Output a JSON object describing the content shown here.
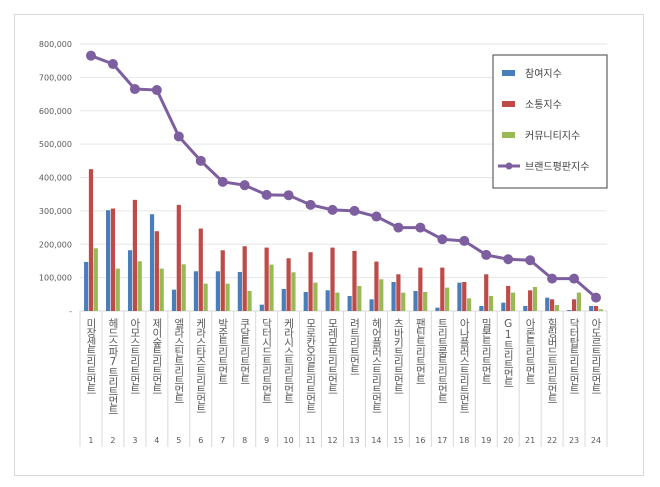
{
  "chart_data": {
    "type": "bar",
    "categories": [
      "미장센트리트먼트",
      "헤드스파7트리트먼트",
      "아모스트리트먼트",
      "제이숲트리트먼트",
      "엘라스틴트리트먼트",
      "케라스타즈트리트먼트",
      "박준트리트먼트",
      "쿠달트리트먼트",
      "닥터시드트리트먼트",
      "케라시스트리트먼트",
      "모로칸오일트리트먼트",
      "모레모트리트먼트",
      "려트리트먼트",
      "헤어플러스트리트먼트",
      "츠바키트리트먼트",
      "팬틴트리트먼트",
      "트리트룸트리트먼트",
      "아나플러스트리트먼트",
      "밀본트리트먼트",
      "G1트리트먼트",
      "아론트리트먼트",
      "힐링버드트리트먼트",
      "닥터탑트리트먼트",
      "아도르트리트먼트"
    ],
    "ranks": [
      "1",
      "2",
      "3",
      "4",
      "5",
      "6",
      "7",
      "8",
      "9",
      "10",
      "11",
      "12",
      "13",
      "14",
      "15",
      "16",
      "17",
      "18",
      "19",
      "20",
      "21",
      "22",
      "23",
      "24"
    ],
    "series": [
      {
        "name": "참여지수",
        "type": "bar",
        "color": "#4a7ebb",
        "values": [
          147000,
          302000,
          182000,
          290000,
          64000,
          119000,
          119000,
          117000,
          19000,
          66000,
          57000,
          62000,
          45000,
          35000,
          87000,
          60000,
          10000,
          85000,
          15000,
          25000,
          15000,
          40000,
          3000,
          15000
        ]
      },
      {
        "name": "소통지수",
        "type": "bar",
        "color": "#be4b48",
        "values": [
          425000,
          307000,
          333000,
          239000,
          318000,
          247000,
          182000,
          194000,
          190000,
          158000,
          176000,
          190000,
          180000,
          148000,
          110000,
          130000,
          130000,
          87000,
          110000,
          75000,
          62000,
          35000,
          35000,
          15000
        ]
      },
      {
        "name": "커뮤니티지수",
        "type": "bar",
        "color": "#98b954",
        "values": [
          188000,
          127000,
          149000,
          127000,
          140000,
          82000,
          82000,
          60000,
          139000,
          116000,
          85000,
          55000,
          75000,
          95000,
          55000,
          57000,
          70000,
          38000,
          45000,
          55000,
          72000,
          18000,
          55000,
          5000
        ]
      },
      {
        "name": "브랜드평판지수",
        "type": "line",
        "color": "#7d5fa0",
        "values": [
          765000,
          740000,
          665000,
          662000,
          523000,
          450000,
          387000,
          377000,
          348000,
          347000,
          318000,
          303000,
          300000,
          283000,
          250000,
          250000,
          215000,
          210000,
          168000,
          155000,
          152000,
          97000,
          97000,
          40000
        ]
      }
    ],
    "yticks": [
      "-",
      "100,000",
      "200,000",
      "300,000",
      "400,000",
      "500,000",
      "600,000",
      "700,000",
      "800,000"
    ],
    "ylim": [
      0,
      800000
    ],
    "grid": true,
    "legend_position": "top-right"
  }
}
